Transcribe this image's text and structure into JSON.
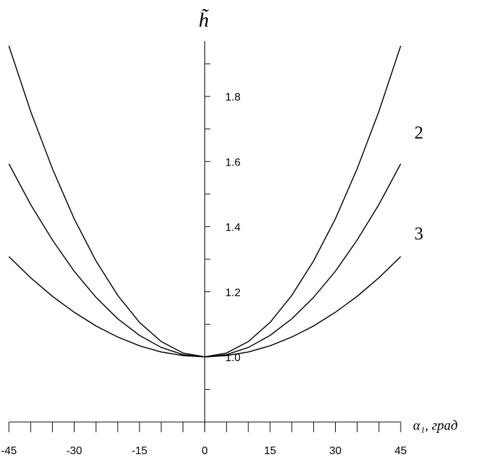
{
  "chart_data": {
    "type": "line",
    "title": "h̃",
    "x_label": "α₁, град",
    "x": [
      -45,
      -40,
      -35,
      -30,
      -25,
      -20,
      -15,
      -10,
      -5,
      0,
      5,
      10,
      15,
      20,
      25,
      30,
      35,
      40,
      45
    ],
    "series": [
      {
        "color": "#000000",
        "values": [
          1.955,
          1.754,
          1.578,
          1.424,
          1.295,
          1.189,
          1.106,
          1.047,
          1.012,
          1.0,
          1.012,
          1.047,
          1.106,
          1.189,
          1.295,
          1.424,
          1.578,
          1.754,
          1.955
        ]
      },
      {
        "name": "2",
        "color": "#000000",
        "values": [
          1.593,
          1.468,
          1.359,
          1.263,
          1.183,
          1.117,
          1.066,
          1.029,
          1.007,
          1.0,
          1.007,
          1.029,
          1.066,
          1.117,
          1.183,
          1.263,
          1.359,
          1.468,
          1.593
        ]
      },
      {
        "name": "3",
        "color": "#000000",
        "values": [
          1.308,
          1.243,
          1.186,
          1.137,
          1.095,
          1.061,
          1.034,
          1.015,
          1.004,
          1.0,
          1.004,
          1.015,
          1.034,
          1.061,
          1.095,
          1.137,
          1.186,
          1.243,
          1.308
        ]
      }
    ],
    "xlim": [
      -45,
      45
    ],
    "ylim": [
      0.8,
      1.97
    ],
    "xticks": [
      -45,
      -30,
      -15,
      0,
      15,
      30,
      45
    ],
    "xminorticks": [
      -40,
      -35,
      -25,
      -20,
      -10,
      -5,
      5,
      10,
      20,
      25,
      35,
      40
    ],
    "yticks": [
      {
        "value": 1,
        "label": "1.0"
      },
      1.2,
      1.4,
      1.6,
      1.8
    ],
    "yminorticks": [
      0.9,
      1.1,
      1.3,
      1.5,
      1.7,
      1.9
    ],
    "grid": false
  }
}
